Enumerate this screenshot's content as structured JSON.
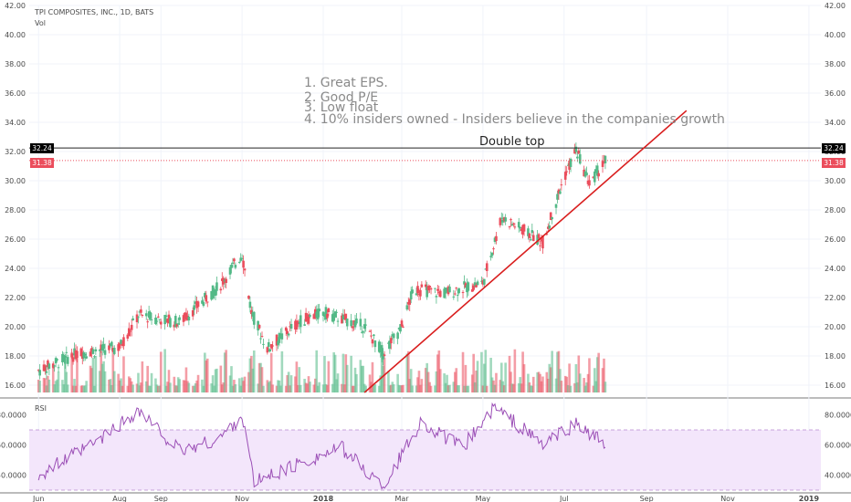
{
  "symbol_label": "TPI COMPOSITES, INC., 1D, BATS",
  "volume_label": "Vol",
  "rsi_label": "RSI",
  "annotation_lines": [
    "1. Great EPS.",
    "2. Good P/E",
    "3. Low float",
    "4. 10% insiders owned - Insiders believe in the companies growth"
  ],
  "double_top_label": "Double top",
  "price_badge_high": "32.24",
  "price_badge_last": "31.38",
  "colors": {
    "up": "#53b987",
    "down": "#eb4d5c",
    "rsi_line": "#9b4fb6",
    "rsi_band": "#f3e6fb",
    "trendline": "#d91e1e"
  },
  "chart_data": {
    "type": "candlestick",
    "title": "TPI COMPOSITES, INC., 1D, BATS",
    "price_ylim": [
      15.5,
      42
    ],
    "price_ticks": [
      "16.00",
      "18.00",
      "20.00",
      "22.00",
      "24.00",
      "26.00",
      "28.00",
      "30.00",
      "32.00",
      "34.00",
      "36.00",
      "38.00",
      "40.00",
      "42.00"
    ],
    "rsi_ylim": [
      30,
      90
    ],
    "rsi_ticks": [
      "40.0000",
      "60.0000",
      "80.0000"
    ],
    "rsi_bands": [
      30,
      70
    ],
    "x_ticks": [
      "Jun",
      "Aug",
      "Sep",
      "Nov",
      "2018",
      "Mar",
      "May",
      "Jul",
      "Sep",
      "Nov",
      "2019"
    ],
    "price_series": [
      {
        "date": "2017-06-01",
        "close": 17.0
      },
      {
        "date": "2017-07-01",
        "close": 18.2
      },
      {
        "date": "2017-08-01",
        "close": 18.6
      },
      {
        "date": "2017-08-15",
        "close": 20.8
      },
      {
        "date": "2017-09-15",
        "close": 20.3
      },
      {
        "date": "2017-10-15",
        "close": 22.8
      },
      {
        "date": "2017-11-01",
        "close": 25.0
      },
      {
        "date": "2017-11-08",
        "close": 21.0
      },
      {
        "date": "2017-11-20",
        "close": 18.5
      },
      {
        "date": "2017-12-15",
        "close": 20.4
      },
      {
        "date": "2018-01-01",
        "close": 21.0
      },
      {
        "date": "2018-02-01",
        "close": 20.0
      },
      {
        "date": "2018-02-15",
        "close": 18.2
      },
      {
        "date": "2018-03-01",
        "close": 20.0
      },
      {
        "date": "2018-03-10",
        "close": 22.6
      },
      {
        "date": "2018-04-01",
        "close": 22.3
      },
      {
        "date": "2018-05-01",
        "close": 23.0
      },
      {
        "date": "2018-05-15",
        "close": 27.5
      },
      {
        "date": "2018-06-15",
        "close": 25.8
      },
      {
        "date": "2018-07-01",
        "close": 30.2
      },
      {
        "date": "2018-07-10",
        "close": 32.1
      },
      {
        "date": "2018-07-20",
        "close": 29.8
      },
      {
        "date": "2018-08-01",
        "close": 31.38
      }
    ],
    "rsi_series": [
      {
        "date": "2017-06-01",
        "value": 40
      },
      {
        "date": "2017-07-15",
        "value": 62
      },
      {
        "date": "2017-08-15",
        "value": 83
      },
      {
        "date": "2017-09-15",
        "value": 56
      },
      {
        "date": "2017-10-15",
        "value": 64
      },
      {
        "date": "2017-11-01",
        "value": 80
      },
      {
        "date": "2017-11-10",
        "value": 35
      },
      {
        "date": "2017-12-15",
        "value": 48
      },
      {
        "date": "2018-01-15",
        "value": 58
      },
      {
        "date": "2018-02-15",
        "value": 32
      },
      {
        "date": "2018-03-15",
        "value": 75
      },
      {
        "date": "2018-04-15",
        "value": 58
      },
      {
        "date": "2018-05-10",
        "value": 85
      },
      {
        "date": "2018-06-15",
        "value": 60
      },
      {
        "date": "2018-07-10",
        "value": 74
      },
      {
        "date": "2018-08-01",
        "value": 60
      }
    ],
    "horizontal_levels": [
      {
        "value": 32.24,
        "style": "solid"
      },
      {
        "value": 31.38,
        "style": "dotted"
      }
    ],
    "trendline": {
      "from": {
        "date": "2018-02-01",
        "value": 15.5
      },
      "to": {
        "date": "2018-10-01",
        "value": 34.8
      }
    }
  }
}
